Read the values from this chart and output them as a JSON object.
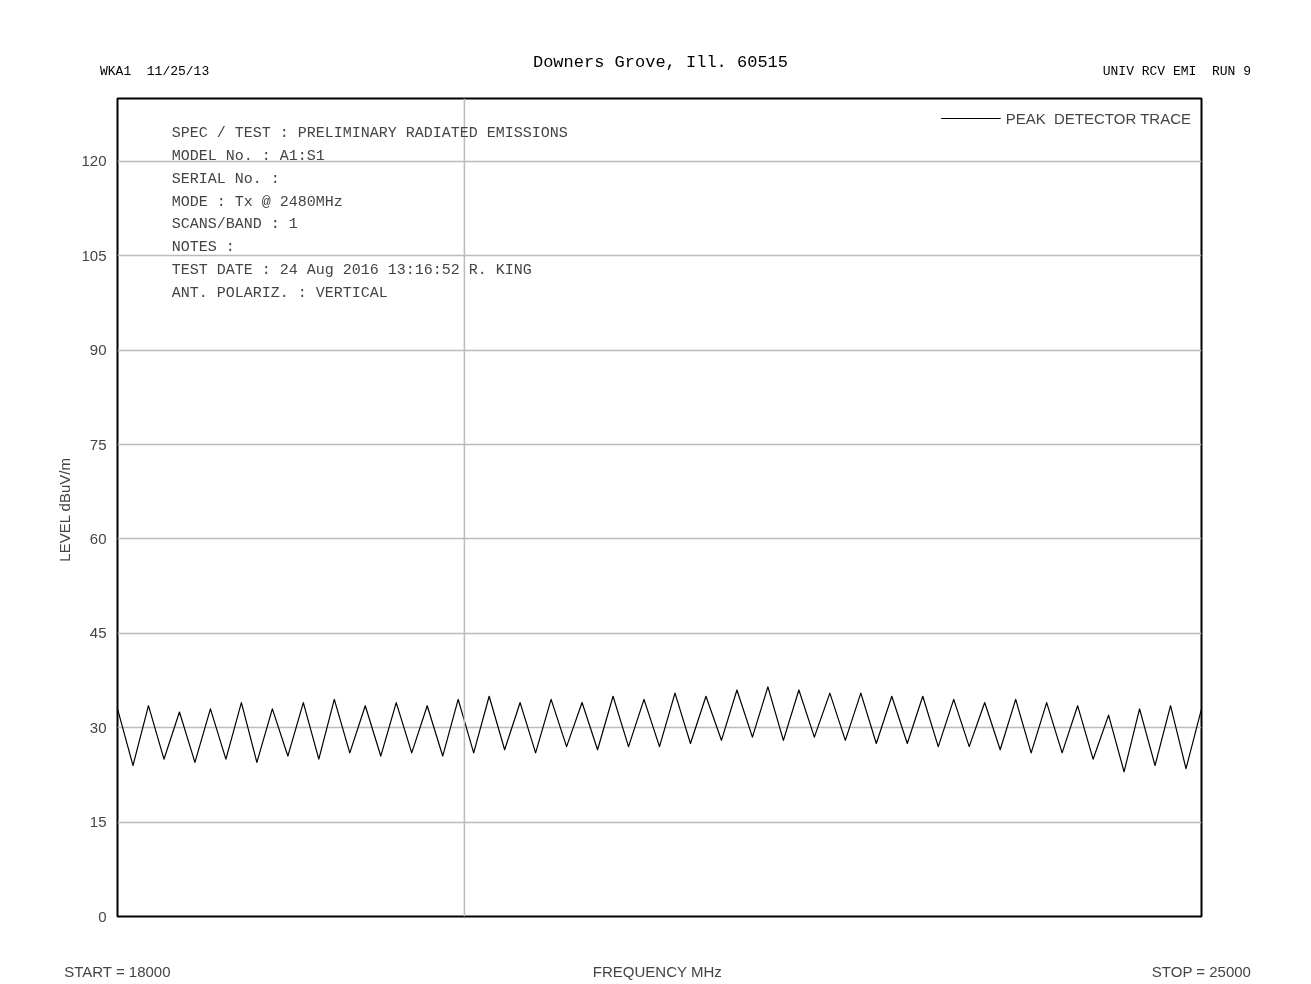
{
  "chart_data": {
    "type": "line",
    "subtitle": "Downers Grove, Ill. 60515",
    "xlabel": "FREQUENCY  MHz",
    "ylabel": "LEVEL  dBuV/m",
    "xlim": [
      18000,
      25000
    ],
    "ylim": [
      0,
      130
    ],
    "yticks": [
      0,
      15,
      30,
      45,
      60,
      75,
      90,
      105,
      120
    ],
    "xticks": [
      {
        "value": 18000,
        "label": "START = 18000"
      },
      {
        "value": 25000,
        "label": "STOP = 25000"
      }
    ],
    "grid": "y",
    "legend": "top right",
    "marker": "none",
    "line_style": "solid",
    "ref_lines": [
      {
        "axis": "x",
        "value": 20240,
        "label": null,
        "color": "#bbbbbb"
      }
    ],
    "annotations": [
      "WKA1  11/25/13",
      "UNIV RCV EMI  RUN 9",
      "SPEC / TEST    : PRELIMINARY RADIATED EMISSIONS",
      "MODEL No.      : A1:S1",
      "SERIAL No.     :",
      "MODE           : Tx @ 2480MHz",
      "SCANS/BAND     : 1",
      "NOTES          :",
      "TEST DATE      : 24 Aug 2016 13:16:52  R. KING",
      "ANT. POLARIZ.  : VERTICAL"
    ],
    "series": [
      {
        "name": "PEAK  DETECTOR TRACE",
        "color": "#000000",
        "x": [
          18000,
          18100,
          18200,
          18300,
          18400,
          18500,
          18600,
          18700,
          18800,
          18900,
          19000,
          19100,
          19200,
          19300,
          19400,
          19500,
          19600,
          19700,
          19800,
          19900,
          20000,
          20100,
          20200,
          20300,
          20400,
          20500,
          20600,
          20700,
          20800,
          20900,
          21000,
          21100,
          21200,
          21300,
          21400,
          21500,
          21600,
          21700,
          21800,
          21900,
          22000,
          22100,
          22200,
          22300,
          22400,
          22500,
          22600,
          22700,
          22800,
          22900,
          23000,
          23100,
          23200,
          23300,
          23400,
          23500,
          23600,
          23700,
          23800,
          23900,
          24000,
          24100,
          24200,
          24300,
          24400,
          24500,
          24600,
          24700,
          24800,
          24900,
          25000
        ],
        "values": [
          33,
          24,
          33.5,
          25,
          32.5,
          24.5,
          33,
          25,
          34,
          24.5,
          33,
          25.5,
          34,
          25,
          34.5,
          26,
          33.5,
          25.5,
          34,
          26,
          33.5,
          25.5,
          34.5,
          26,
          35,
          26.5,
          34,
          26,
          34.5,
          27,
          34,
          26.5,
          35,
          27,
          34.5,
          27,
          35.5,
          27.5,
          35,
          28,
          36,
          28.5,
          36.5,
          28,
          36,
          28.5,
          35.5,
          28,
          35.5,
          27.5,
          35,
          27.5,
          35,
          27,
          34.5,
          27,
          34,
          26.5,
          34.5,
          26,
          34,
          26,
          33.5,
          25,
          32,
          23,
          33,
          24,
          33.5,
          23.5,
          33
        ]
      }
    ]
  }
}
